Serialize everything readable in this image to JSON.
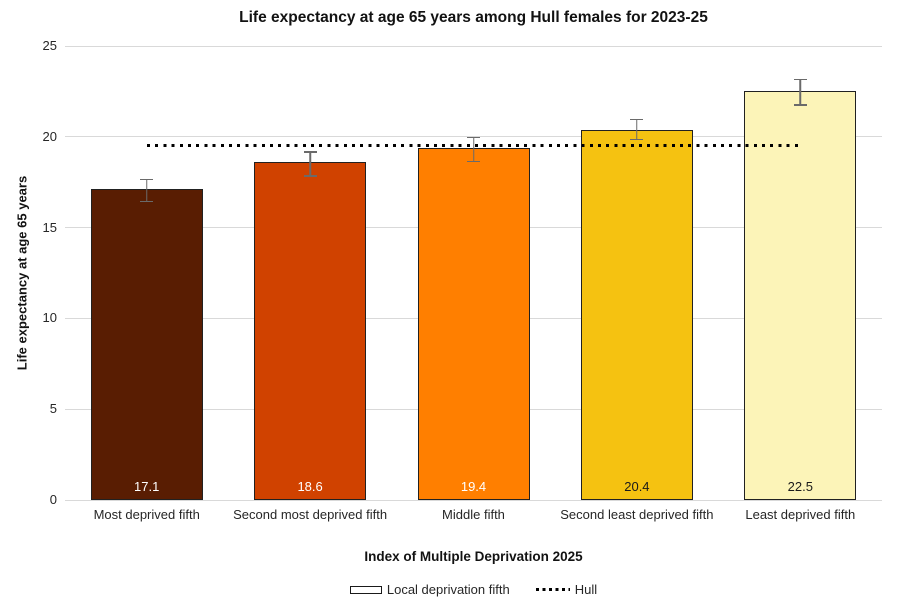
{
  "chart_data": {
    "type": "bar",
    "title": "Life expectancy at age 65 years among Hull females for 2023-25",
    "xlabel": "Index of Multiple Deprivation 2025",
    "ylabel": "Life expectancy at age 65 years",
    "ylim": [
      0,
      25
    ],
    "yticks": [
      0,
      5,
      10,
      15,
      20,
      25
    ],
    "grid": true,
    "categories": [
      "Most deprived fifth",
      "Second most deprived fifth",
      "Middle fifth",
      "Second least deprived fifth",
      "Least deprived fifth"
    ],
    "series": [
      {
        "name": "Local deprivation fifth",
        "type": "bar",
        "values": [
          17.1,
          18.6,
          19.4,
          20.4,
          22.5
        ],
        "data_labels": [
          "17.1",
          "18.6",
          "19.4",
          "20.4",
          "22.5"
        ],
        "bar_colors": [
          "#591d02",
          "#d04200",
          "#ff7f00",
          "#f5c211",
          "#fcf4b8"
        ],
        "label_colors": [
          "#ffffff",
          "#ffffff",
          "#ffffff",
          "#1a1a1a",
          "#1a1a1a"
        ],
        "error_low": [
          16.4,
          17.8,
          18.6,
          19.8,
          21.7
        ],
        "error_high": [
          17.7,
          19.2,
          20.0,
          21.0,
          23.2
        ]
      },
      {
        "name": "Hull",
        "type": "dotted-line",
        "value": 19.5
      }
    ],
    "legend": {
      "position": "bottom",
      "entries": [
        {
          "label": "Local deprivation fifth",
          "marker": "bar-outline"
        },
        {
          "label": "Hull",
          "marker": "dotted-line"
        }
      ]
    },
    "colors": {
      "gridline": "#d9d9d9",
      "error_bar": "#6a6a6a",
      "hull_line": "#000000",
      "bar_border": "#212121"
    }
  }
}
